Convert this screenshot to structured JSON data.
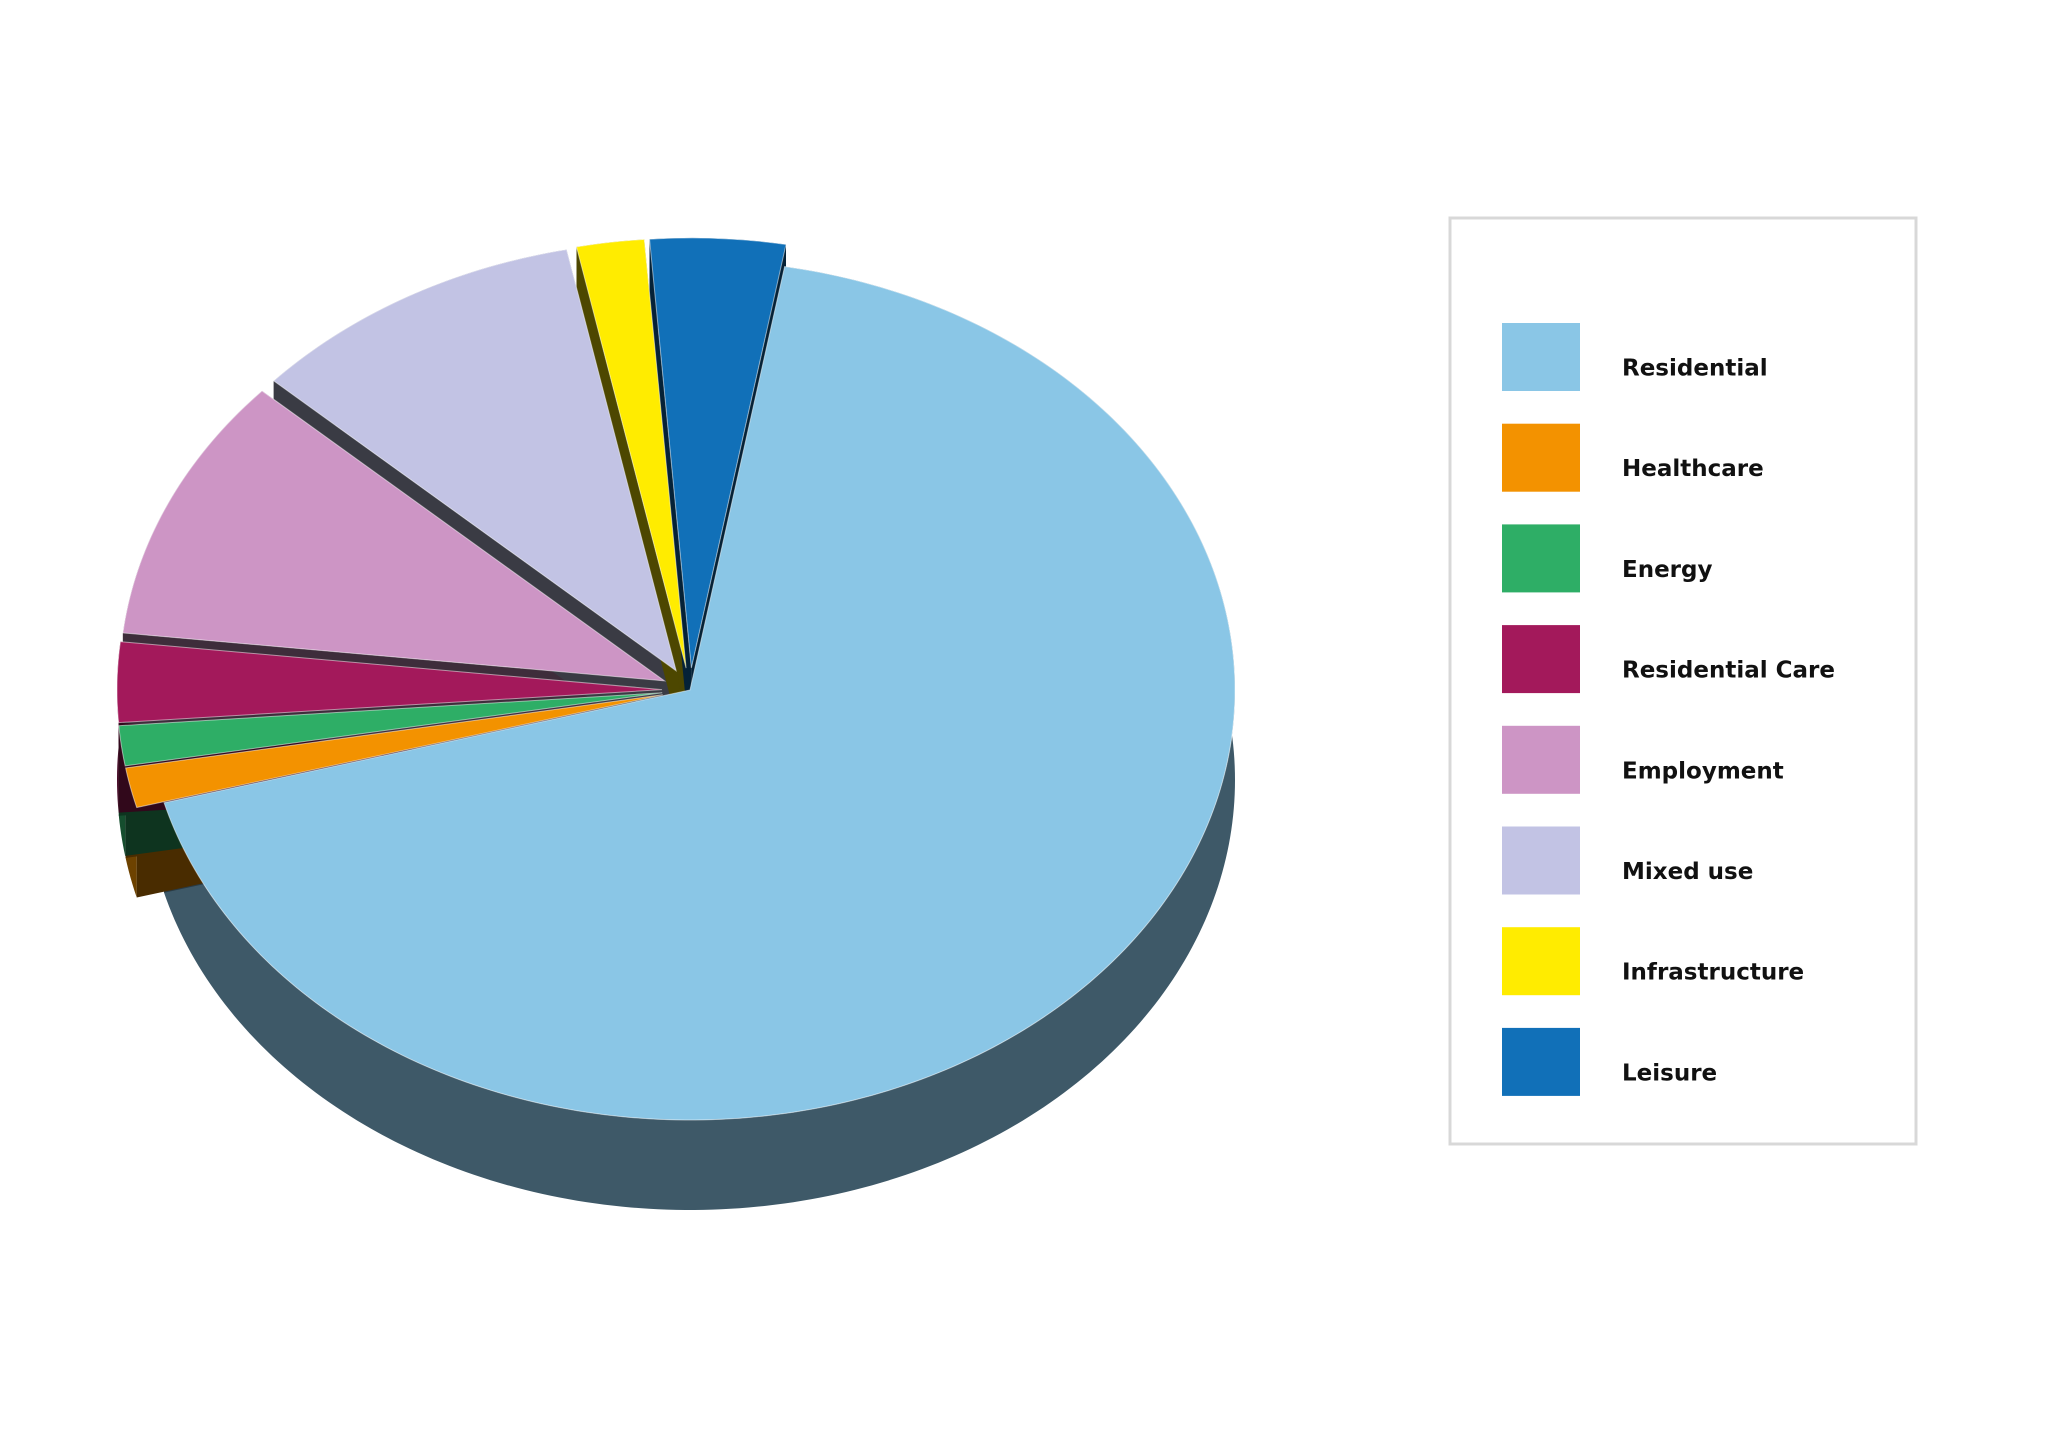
{
  "chart_data": {
    "type": "pie",
    "categories": [
      "Residential",
      "Healthcare",
      "Energy",
      "Residential Care",
      "Employment",
      "Mixed use",
      "Infrastructure",
      "Leisure"
    ],
    "values": [
      68,
      1.5,
      1.5,
      3,
      10,
      10,
      2,
      4
    ],
    "colors": [
      "#8ac6e6",
      "#f39200",
      "#2eae66",
      "#a3195b",
      "#cd95c5",
      "#c2c3e4",
      "#ffec00",
      "#1170b8"
    ],
    "legend": "right"
  }
}
